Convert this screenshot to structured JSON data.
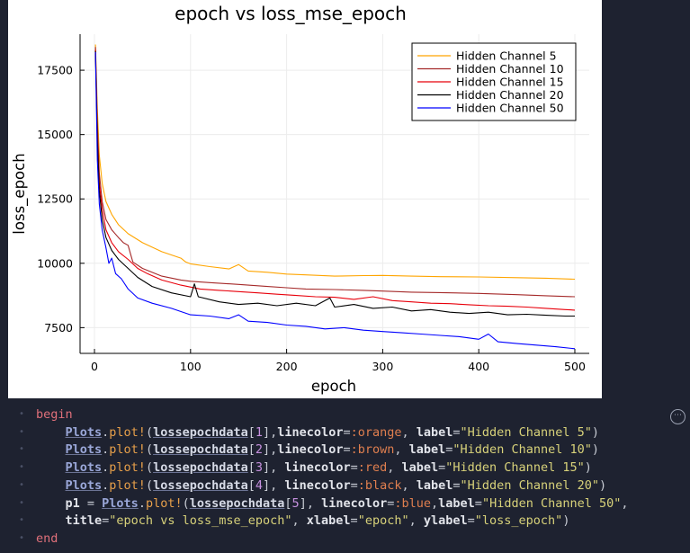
{
  "chart_data": {
    "type": "line",
    "title": "epoch vs loss_mse_epoch",
    "xlabel": "epoch",
    "ylabel": "loss_epoch",
    "xlim": [
      -15,
      515
    ],
    "ylim": [
      6500,
      18900
    ],
    "xticks": [
      0,
      100,
      200,
      300,
      400,
      500
    ],
    "yticks": [
      7500,
      10000,
      12500,
      15000,
      17500
    ],
    "grid": true,
    "legend_position": "top-right",
    "series": [
      {
        "name": "Hidden Channel 5",
        "color": "#ffa500",
        "points": [
          [
            1,
            18500
          ],
          [
            3,
            16000
          ],
          [
            5,
            14200
          ],
          [
            8,
            13100
          ],
          [
            12,
            12400
          ],
          [
            18,
            11900
          ],
          [
            25,
            11500
          ],
          [
            35,
            11150
          ],
          [
            50,
            10800
          ],
          [
            70,
            10450
          ],
          [
            90,
            10200
          ],
          [
            95,
            10050
          ],
          [
            100,
            9980
          ],
          [
            120,
            9870
          ],
          [
            140,
            9780
          ],
          [
            150,
            9950
          ],
          [
            160,
            9700
          ],
          [
            180,
            9650
          ],
          [
            200,
            9580
          ],
          [
            220,
            9550
          ],
          [
            250,
            9500
          ],
          [
            280,
            9520
          ],
          [
            300,
            9530
          ],
          [
            330,
            9500
          ],
          [
            360,
            9480
          ],
          [
            400,
            9470
          ],
          [
            440,
            9440
          ],
          [
            470,
            9420
          ],
          [
            500,
            9380
          ]
        ]
      },
      {
        "name": "Hidden Channel 10",
        "color": "#a52a2a",
        "points": [
          [
            1,
            18400
          ],
          [
            3,
            15500
          ],
          [
            5,
            13500
          ],
          [
            8,
            12400
          ],
          [
            12,
            11700
          ],
          [
            18,
            11300
          ],
          [
            25,
            11000
          ],
          [
            30,
            10800
          ],
          [
            35,
            10700
          ],
          [
            38,
            10300
          ],
          [
            40,
            10050
          ],
          [
            50,
            9800
          ],
          [
            70,
            9500
          ],
          [
            90,
            9350
          ],
          [
            100,
            9300
          ],
          [
            120,
            9250
          ],
          [
            150,
            9180
          ],
          [
            180,
            9100
          ],
          [
            200,
            9050
          ],
          [
            220,
            9000
          ],
          [
            250,
            8980
          ],
          [
            280,
            8950
          ],
          [
            300,
            8920
          ],
          [
            330,
            8880
          ],
          [
            360,
            8860
          ],
          [
            400,
            8830
          ],
          [
            440,
            8780
          ],
          [
            470,
            8740
          ],
          [
            500,
            8700
          ]
        ]
      },
      {
        "name": "Hidden Channel 15",
        "color": "#e8000b",
        "points": [
          [
            1,
            18300
          ],
          [
            3,
            15000
          ],
          [
            5,
            13100
          ],
          [
            8,
            12100
          ],
          [
            12,
            11300
          ],
          [
            18,
            10800
          ],
          [
            25,
            10450
          ],
          [
            35,
            10150
          ],
          [
            45,
            9800
          ],
          [
            55,
            9600
          ],
          [
            70,
            9350
          ],
          [
            90,
            9150
          ],
          [
            110,
            9000
          ],
          [
            130,
            8950
          ],
          [
            150,
            8900
          ],
          [
            170,
            8850
          ],
          [
            190,
            8800
          ],
          [
            210,
            8750
          ],
          [
            230,
            8700
          ],
          [
            250,
            8680
          ],
          [
            270,
            8600
          ],
          [
            290,
            8700
          ],
          [
            310,
            8550
          ],
          [
            330,
            8500
          ],
          [
            350,
            8450
          ],
          [
            370,
            8430
          ],
          [
            390,
            8390
          ],
          [
            410,
            8350
          ],
          [
            430,
            8330
          ],
          [
            450,
            8300
          ],
          [
            470,
            8250
          ],
          [
            490,
            8200
          ],
          [
            500,
            8180
          ]
        ]
      },
      {
        "name": "Hidden Channel 20",
        "color": "#000000",
        "points": [
          [
            1,
            18250
          ],
          [
            3,
            14800
          ],
          [
            5,
            12800
          ],
          [
            8,
            11700
          ],
          [
            12,
            11000
          ],
          [
            18,
            10500
          ],
          [
            25,
            10150
          ],
          [
            35,
            9800
          ],
          [
            45,
            9450
          ],
          [
            60,
            9100
          ],
          [
            80,
            8850
          ],
          [
            100,
            8700
          ],
          [
            104,
            9200
          ],
          [
            108,
            8700
          ],
          [
            130,
            8500
          ],
          [
            150,
            8400
          ],
          [
            170,
            8450
          ],
          [
            190,
            8350
          ],
          [
            210,
            8450
          ],
          [
            230,
            8350
          ],
          [
            245,
            8650
          ],
          [
            250,
            8300
          ],
          [
            270,
            8400
          ],
          [
            290,
            8250
          ],
          [
            310,
            8300
          ],
          [
            330,
            8150
          ],
          [
            350,
            8200
          ],
          [
            370,
            8100
          ],
          [
            390,
            8050
          ],
          [
            410,
            8100
          ],
          [
            430,
            8000
          ],
          [
            450,
            8020
          ],
          [
            470,
            7980
          ],
          [
            490,
            7950
          ],
          [
            500,
            7950
          ]
        ]
      },
      {
        "name": "Hidden Channel 50",
        "color": "#0000ff",
        "points": [
          [
            1,
            18200
          ],
          [
            3,
            14000
          ],
          [
            5,
            12300
          ],
          [
            8,
            11300
          ],
          [
            12,
            10600
          ],
          [
            15,
            10000
          ],
          [
            18,
            10200
          ],
          [
            22,
            9600
          ],
          [
            28,
            9400
          ],
          [
            35,
            9000
          ],
          [
            45,
            8650
          ],
          [
            60,
            8450
          ],
          [
            80,
            8250
          ],
          [
            100,
            8000
          ],
          [
            120,
            7950
          ],
          [
            140,
            7850
          ],
          [
            150,
            8000
          ],
          [
            160,
            7750
          ],
          [
            180,
            7700
          ],
          [
            200,
            7600
          ],
          [
            220,
            7550
          ],
          [
            240,
            7450
          ],
          [
            260,
            7500
          ],
          [
            280,
            7400
          ],
          [
            300,
            7350
          ],
          [
            320,
            7300
          ],
          [
            340,
            7250
          ],
          [
            360,
            7200
          ],
          [
            380,
            7150
          ],
          [
            400,
            7050
          ],
          [
            410,
            7250
          ],
          [
            420,
            6950
          ],
          [
            440,
            6880
          ],
          [
            460,
            6820
          ],
          [
            480,
            6760
          ],
          [
            500,
            6680
          ]
        ]
      }
    ]
  },
  "code": {
    "lines": [
      "begin",
      "    Plots.plot!(lossepochdata[1],linecolor=:orange, label=\"Hidden Channel 5\")",
      "    Plots.plot!(lossepochdata[2],linecolor=:brown, label=\"Hidden Channel 10\")",
      "    Plots.plot!(lossepochdata[3], linecolor=:red, label=\"Hidden Channel 15\")",
      "    Plots.plot!(lossepochdata[4], linecolor=:black, label=\"Hidden Channel 20\")",
      "    p1 = Plots.plot!(lossepochdata[5], linecolor=:blue,label=\"Hidden Channel 50\",",
      "    title=\"epoch vs loss_mse_epoch\", xlabel=\"epoch\", ylabel=\"loss_epoch\")",
      "end"
    ],
    "menu_icon": "ellipsis-icon"
  }
}
